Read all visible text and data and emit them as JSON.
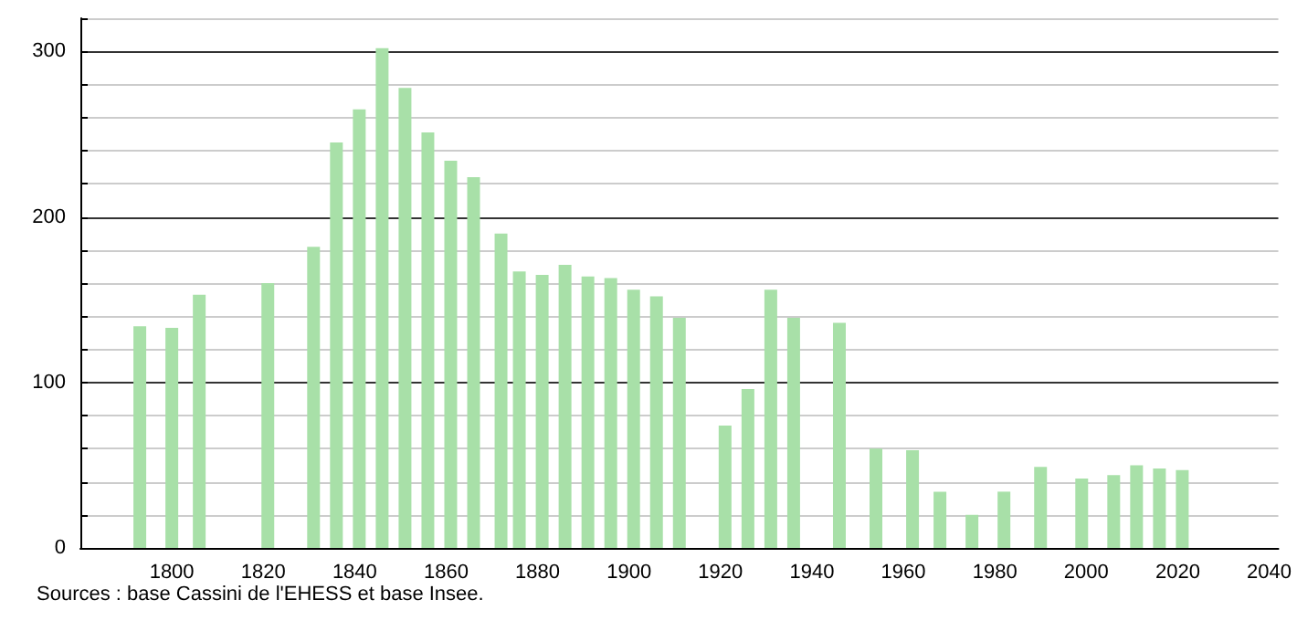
{
  "chart_data": {
    "type": "bar",
    "x": [
      1793,
      1800,
      1806,
      1821,
      1831,
      1836,
      1841,
      1846,
      1851,
      1856,
      1861,
      1866,
      1872,
      1876,
      1881,
      1886,
      1891,
      1896,
      1901,
      1906,
      1911,
      1921,
      1926,
      1931,
      1936,
      1946,
      1954,
      1962,
      1968,
      1975,
      1982,
      1990,
      1999,
      2006,
      2011,
      2016,
      2021
    ],
    "values": [
      134,
      133,
      153,
      160,
      182,
      245,
      265,
      302,
      278,
      251,
      234,
      224,
      190,
      167,
      165,
      171,
      164,
      163,
      156,
      152,
      139,
      74,
      96,
      156,
      139,
      136,
      60,
      59,
      34,
      20,
      34,
      49,
      42,
      44,
      50,
      48,
      47
    ],
    "color": "#a8e0a8",
    "xlim": [
      1780,
      2042
    ],
    "xticks": [
      1800,
      1820,
      1840,
      1860,
      1880,
      1900,
      1920,
      1940,
      1960,
      1980,
      2000,
      2020,
      2040
    ],
    "ylim": [
      0,
      320
    ],
    "yticks": [
      0,
      {
        "value": 20,
        "label": null
      },
      {
        "value": 40,
        "label": null
      },
      {
        "value": 60,
        "label": null
      },
      {
        "value": 80,
        "label": null
      },
      100,
      {
        "value": 120,
        "label": null
      },
      {
        "value": 140,
        "label": null
      },
      {
        "value": 160,
        "label": null
      },
      {
        "value": 180,
        "label": null
      },
      200,
      {
        "value": 220,
        "label": null
      },
      {
        "value": 240,
        "label": null
      },
      {
        "value": 260,
        "label": null
      },
      {
        "value": 280,
        "label": null
      },
      300,
      {
        "value": 320,
        "label": null
      }
    ],
    "grid": "y",
    "annotations": [
      "Sources : base Cassini de l'EHESS et base Insee."
    ]
  }
}
